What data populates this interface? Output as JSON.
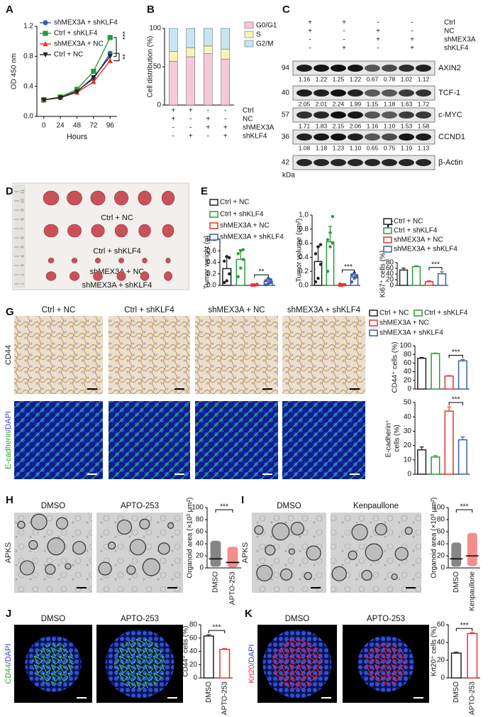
{
  "panel_labels": [
    "A",
    "B",
    "C",
    "D",
    "E",
    "F",
    "G",
    "H",
    "I",
    "J",
    "K"
  ],
  "chart_data": [
    {
      "type": "line",
      "x": [
        0,
        24,
        48,
        72,
        96
      ],
      "xlim": [
        -10,
        106
      ],
      "xticks": [
        0,
        24,
        48,
        72,
        96
      ],
      "xlabel": "Hours",
      "ylabel": "OD 450 nm",
      "ylim": [
        0,
        1.2
      ],
      "yticks": [
        {
          "value": 0,
          "label": "0.0"
        },
        0.4,
        0.8,
        1.2
      ],
      "series": [
        {
          "name": "shMEX3A + shKLF4",
          "color": "#3a5fa8",
          "marker": "circle",
          "values": [
            0.22,
            0.25,
            0.34,
            0.5,
            0.84
          ]
        },
        {
          "name": "Ctrl + shKLF4",
          "color": "#2a9a3a",
          "marker": "square",
          "values": [
            0.22,
            0.26,
            0.36,
            0.6,
            1.05
          ]
        },
        {
          "name": "shMEX3A + NC",
          "color": "#e8312b",
          "marker": "triangle",
          "values": [
            0.22,
            0.25,
            0.32,
            0.46,
            0.74
          ]
        },
        {
          "name": "Ctrl + NC",
          "color": "#222222",
          "marker": "triangle-down",
          "values": [
            0.22,
            0.25,
            0.33,
            0.52,
            0.8
          ]
        }
      ],
      "annotations": [
        "***",
        "**"
      ]
    },
    {
      "type": "stacked_bar",
      "categories": [
        null,
        null,
        null,
        null
      ],
      "ylabel": "Cell distribution (%)",
      "ylim": [
        0,
        100
      ],
      "yticks": [
        0,
        50,
        100
      ],
      "series": [
        {
          "name": "G0/G1",
          "color": "#f6c9d8",
          "values": [
            57,
            63,
            67,
            60
          ]
        },
        {
          "name": "S",
          "color": "#fbf3b5",
          "values": [
            13,
            12,
            10,
            13
          ]
        },
        {
          "name": "G2/M",
          "color": "#c6e6f3",
          "values": [
            30,
            25,
            23,
            27
          ]
        }
      ],
      "conditions": [
        {
          "name": "Ctrl",
          "signs": [
            "+",
            "+",
            "-",
            "-"
          ]
        },
        {
          "name": "NC",
          "signs": [
            "+",
            "-",
            "+",
            "-"
          ]
        },
        {
          "name": "shMEX3A",
          "signs": [
            "-",
            "-",
            "+",
            "+"
          ]
        },
        {
          "name": "shKLF4",
          "signs": [
            "-",
            "+",
            "-",
            "+"
          ]
        }
      ]
    },
    {
      "type": "bar",
      "categories": [
        null,
        null,
        null,
        null
      ],
      "ylabel": "Tumor weight (g)",
      "ylim": [
        0,
        0.8
      ],
      "yticks": [
        {
          "value": 0,
          "label": "0.0"
        },
        0.2,
        0.4,
        0.6,
        0.8
      ],
      "colors": [
        "#222222",
        "#2a9a3a",
        "#e8312b",
        "#3a5fa8"
      ],
      "values": [
        0.29,
        0.45,
        0.01,
        0.07
      ],
      "errors": [
        0.2,
        0.17,
        0.01,
        0.04
      ],
      "points": [
        [
          0.05,
          0.08,
          0.2,
          0.42,
          0.5,
          0.48
        ],
        [
          0.15,
          0.3,
          0.45,
          0.55,
          0.6,
          0.62
        ],
        [
          0.0,
          0.01,
          0.02,
          0.01,
          0.0,
          0.01
        ],
        [
          0.01,
          0.03,
          0.05,
          0.08,
          0.12,
          0.1
        ]
      ],
      "annotation": "**"
    },
    {
      "type": "bar",
      "categories": [
        null,
        null,
        null,
        null
      ],
      "ylabel": "Tumor volume (cm²)",
      "ylim": [
        0,
        1.0
      ],
      "yticks": [
        {
          "value": 0,
          "label": "0.0"
        },
        0.2,
        0.4,
        0.6,
        0.8,
        {
          "value": 1,
          "label": "1.0"
        }
      ],
      "colors": [
        "#222222",
        "#2a9a3a",
        "#e8312b",
        "#3a5fa8"
      ],
      "values": [
        0.34,
        0.62,
        0.01,
        0.12
      ],
      "errors": [
        0.21,
        0.22,
        0.01,
        0.04
      ],
      "points": [
        [
          0.05,
          0.1,
          0.3,
          0.45,
          0.55,
          0.58
        ],
        [
          0.2,
          0.55,
          0.6,
          0.65,
          0.75,
          0.98
        ],
        [
          0.0,
          0.01,
          0.01,
          0.02,
          0.0,
          0.01
        ],
        [
          0.05,
          0.1,
          0.12,
          0.15,
          0.18,
          0.14
        ]
      ],
      "annotation": "***"
    },
    {
      "type": "bar",
      "categories": [
        null,
        null,
        null,
        null
      ],
      "ylabel": "Ki67⁺ cells (%)",
      "ylim": [
        0,
        80
      ],
      "yticks": [
        0,
        20,
        40,
        60,
        80
      ],
      "colors": [
        "#222222",
        "#2a9a3a",
        "#e8312b",
        "#3a5fa8"
      ],
      "values": [
        54,
        66,
        13,
        41
      ],
      "errors": [
        7,
        3,
        3,
        7
      ],
      "annotation": "***"
    },
    {
      "type": "bar",
      "categories": [
        null,
        null,
        null,
        null
      ],
      "ylabel": "CD44⁺ cells (%)",
      "ylim": [
        0,
        100
      ],
      "yticks": [
        0,
        20,
        40,
        60,
        80,
        100
      ],
      "colors": [
        "#222222",
        "#2a9a3a",
        "#e8312b",
        "#3a5fa8"
      ],
      "values": [
        71,
        82,
        30,
        65
      ],
      "errors": [
        2,
        1,
        1,
        3
      ],
      "annotation": "***"
    },
    {
      "type": "bar",
      "categories": [
        null,
        null,
        null,
        null
      ],
      "ylabel": [
        "E-cadherin⁺",
        "cells (%)"
      ],
      "ylim": [
        0,
        50
      ],
      "yticks": [
        0,
        10,
        20,
        30,
        40,
        50
      ],
      "colors": [
        "#222222",
        "#2a9a3a",
        "#e8312b",
        "#3a5fa8"
      ],
      "values": [
        17,
        12,
        44,
        24
      ],
      "errors": [
        2,
        1,
        3,
        2
      ],
      "annotation": "***"
    },
    {
      "type": "dot",
      "categories": [
        "DMSO",
        "APTO-253"
      ],
      "ylabel": "Organoid area (×10³ μm²)",
      "ylim": [
        0,
        100
      ],
      "yticks": [
        0,
        20,
        40,
        60,
        80,
        100
      ],
      "colors": [
        "#222222",
        "#e8312b"
      ],
      "values": [
        15,
        9
      ],
      "ranges": [
        [
          2,
          45
        ],
        [
          1,
          35
        ]
      ],
      "annotation": "***"
    },
    {
      "type": "dot",
      "categories": [
        "DMSO",
        "Kenpaullone"
      ],
      "ylabel": "Organoid area (×10³ μm²)",
      "ylim": [
        0,
        100
      ],
      "yticks": [
        0,
        20,
        40,
        60,
        80,
        100
      ],
      "colors": [
        "#222222",
        "#e8312b"
      ],
      "values": [
        15,
        20
      ],
      "ranges": [
        [
          2,
          42
        ],
        [
          3,
          58
        ]
      ],
      "annotation": "***"
    },
    {
      "type": "bar",
      "categories": [
        "DMSO",
        "APTO-253"
      ],
      "ylabel": "CD44⁺ cells (%)",
      "ylim": [
        0,
        80
      ],
      "yticks": [
        0,
        20,
        40,
        60,
        80
      ],
      "colors": [
        "#222222",
        "#e8312b"
      ],
      "values": [
        63,
        43
      ],
      "errors": [
        2,
        1
      ],
      "annotation": "***"
    },
    {
      "type": "bar",
      "categories": [
        "DMSO",
        "APTO-253"
      ],
      "ylabel": "Krt20⁺ cells (%)",
      "ylim": [
        0,
        60
      ],
      "yticks": [
        0,
        20,
        40,
        60
      ],
      "colors": [
        "#222222",
        "#e8312b"
      ],
      "values": [
        28,
        50
      ],
      "errors": [
        1,
        1
      ],
      "annotation": "***"
    }
  ],
  "blot": {
    "conditions": [
      {
        "name": "Ctrl",
        "signs": [
          "+",
          "+",
          "-",
          "-"
        ]
      },
      {
        "name": "NC",
        "signs": [
          "+",
          "-",
          "+",
          "-"
        ]
      },
      {
        "name": "shMEX3A",
        "signs": [
          "-",
          "-",
          "+",
          "+"
        ]
      },
      {
        "name": "shKLF4",
        "signs": [
          "-",
          "+",
          "-",
          "+"
        ]
      }
    ],
    "rows": [
      {
        "mw": 94,
        "name": "AXIN2",
        "quant": [
          "1.16",
          "1.22",
          "1.25",
          "1.22",
          "0.67",
          "0.78",
          "1.02",
          "1.12"
        ]
      },
      {
        "mw": 40,
        "name": "TCF-1",
        "quant": [
          "2.05",
          "2.01",
          "2.24",
          "1.99",
          "1.15",
          "1.18",
          "1.63",
          "1.72"
        ]
      },
      {
        "mw": 57,
        "name": "c-MYC",
        "quant": [
          "1.71",
          "1.83",
          "2.15",
          "2.06",
          "1.16",
          "1.10",
          "1.53",
          "1.58"
        ]
      },
      {
        "mw": 36,
        "name": "CCND1",
        "quant": [
          "1.08",
          "1.18",
          "1.23",
          "1.10",
          "0.65",
          "0.75",
          "1.19",
          "1.13"
        ]
      },
      {
        "mw": 42,
        "name": "β-Actin"
      }
    ],
    "unit": "kDa"
  },
  "tumor_photo": {
    "groups": [
      "Ctrl + NC",
      "Ctrl + shKLF4",
      "shMEX3A + NC",
      "shMEX3A + shKLF4"
    ],
    "ruler": [
      "1",
      "2",
      "3",
      "4",
      "5",
      "6",
      "7",
      "8",
      "9",
      "10",
      "11"
    ]
  },
  "legends": [
    [
      {
        "name": "Ctrl + NC",
        "color": "#222222"
      },
      {
        "name": "Ctrl + shKLF4",
        "color": "#2a9a3a"
      },
      {
        "name": "shMEX3A + NC",
        "color": "#e8312b"
      },
      {
        "name": "shMEX3A + shKLF4",
        "color": "#3a5fa8"
      }
    ],
    [
      {
        "name": "Ctrl + NC",
        "color": "#222222"
      },
      {
        "name": "Ctrl + shKLF4",
        "color": "#2a9a3a"
      },
      {
        "name": "shMEX3A + NC",
        "color": "#e8312b"
      },
      {
        "name": "shMEX3A + shKLF4",
        "color": "#3a5fa8"
      }
    ],
    [
      {
        "name": "Ctrl + NC",
        "color": "#222222"
      },
      {
        "name": "Ctrl + shKLF4",
        "color": "#2a9a3a"
      },
      {
        "name": "shMEX3A + NC",
        "color": "#e8312b"
      },
      {
        "name": "shMEX3A + shKLF4",
        "color": "#3a5fa8"
      }
    ]
  ],
  "image_panels": [
    {
      "columns": [
        "Ctrl + NC",
        "Ctrl + shKLF4",
        "shMEX3A + NC",
        "shMEX3A + shKLF4"
      ],
      "rows": [
        [
          {
            "text": "CD44",
            "color": "#222222"
          }
        ],
        [
          {
            "text": "E-cadherin",
            "color": "#2aa52a"
          },
          {
            "text": "/DAPI",
            "color": "#2f3fd0"
          }
        ]
      ]
    },
    {
      "columns": [
        "DMSO",
        "APTO-253"
      ],
      "rows": [
        [
          {
            "text": "APKS",
            "color": "#222222"
          }
        ]
      ]
    },
    {
      "columns": [
        "DMSO",
        "Kenpaullone"
      ],
      "rows": [
        [
          {
            "text": "APKS",
            "color": "#222222"
          }
        ]
      ]
    },
    {
      "columns": [
        "DMSO",
        "APTO-253"
      ],
      "rows": [
        [
          {
            "text": "CD44",
            "color": "#2aa52a"
          },
          {
            "text": "/DAPI",
            "color": "#2f3fd0"
          }
        ]
      ]
    },
    {
      "columns": [
        "DMSO",
        "APTO-253"
      ],
      "rows": [
        [
          {
            "text": "Krt20",
            "color": "#e0263a"
          },
          {
            "text": "/DAPI",
            "color": "#2f3fd0"
          }
        ]
      ]
    }
  ]
}
